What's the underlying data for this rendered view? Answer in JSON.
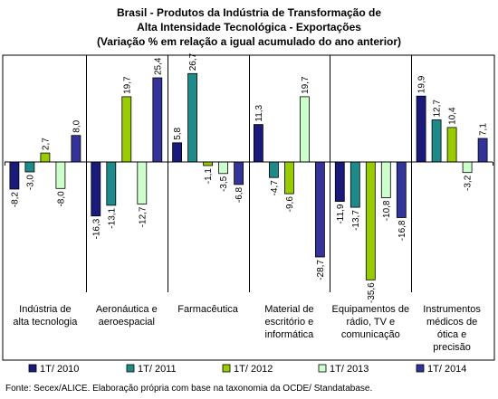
{
  "chart_data": {
    "type": "bar",
    "title_lines": [
      "Brasil - Produtos da Indústria de Transformação de",
      "Alta Intensidade Tecnológica - Exportações",
      "(Variação % em relação a igual acumulado do ano anterior)"
    ],
    "categories": [
      [
        "Indústria de",
        "alta tecnologia"
      ],
      [
        "Aeronáutica e",
        "aeroespacial"
      ],
      [
        "Farmacêutica"
      ],
      [
        "Material de",
        "escritório e",
        "informática"
      ],
      [
        "Equipamentos de",
        "rádio, TV e",
        "comunicação"
      ],
      [
        "Instrumentos",
        "médicos de",
        "ótica e",
        "precisão"
      ]
    ],
    "series": [
      {
        "name": "1T/ 2010",
        "color": "#1a1a7a",
        "values": [
          -8.2,
          -16.3,
          5.8,
          11.3,
          -11.9,
          19.9
        ],
        "labels": [
          "-8,2",
          "-16,3",
          "5,8",
          "11,3",
          "-11,9",
          "19,9"
        ]
      },
      {
        "name": "1T/ 2011",
        "color": "#1e8a8a",
        "values": [
          -3.0,
          -13.1,
          26.7,
          -4.7,
          -13.7,
          12.7
        ],
        "labels": [
          "-3,0",
          "-13,1",
          "26,7",
          "-4,7",
          "-13,7",
          "12,7"
        ]
      },
      {
        "name": "1T/ 2012",
        "color": "#99cc00",
        "values": [
          2.7,
          19.7,
          -1.1,
          -9.6,
          -35.6,
          10.4
        ],
        "labels": [
          "2,7",
          "19,7",
          "-1,1",
          "-9,6",
          "-35,6",
          "10,4"
        ]
      },
      {
        "name": "1T/ 2013",
        "color": "#ccffcc",
        "values": [
          -8.0,
          -12.7,
          -3.5,
          19.7,
          -10.8,
          -3.2
        ],
        "labels": [
          "-8,0",
          "-12,7",
          "-3,5",
          "19,7",
          "-10,8",
          "-3,2"
        ]
      },
      {
        "name": "1T/ 2014",
        "color": "#333399",
        "values": [
          8.0,
          25.4,
          -6.8,
          -28.7,
          -16.8,
          7.1
        ],
        "labels": [
          "8,0",
          "25,4",
          "-6,8",
          "-28,7",
          "-16,8",
          "7,1"
        ]
      }
    ],
    "legend_position": "bottom",
    "grid": false
  },
  "source": "Fonte: Secex/ALICE. Elaboração própria com base na taxonomia da OCDE/ Standatabase."
}
